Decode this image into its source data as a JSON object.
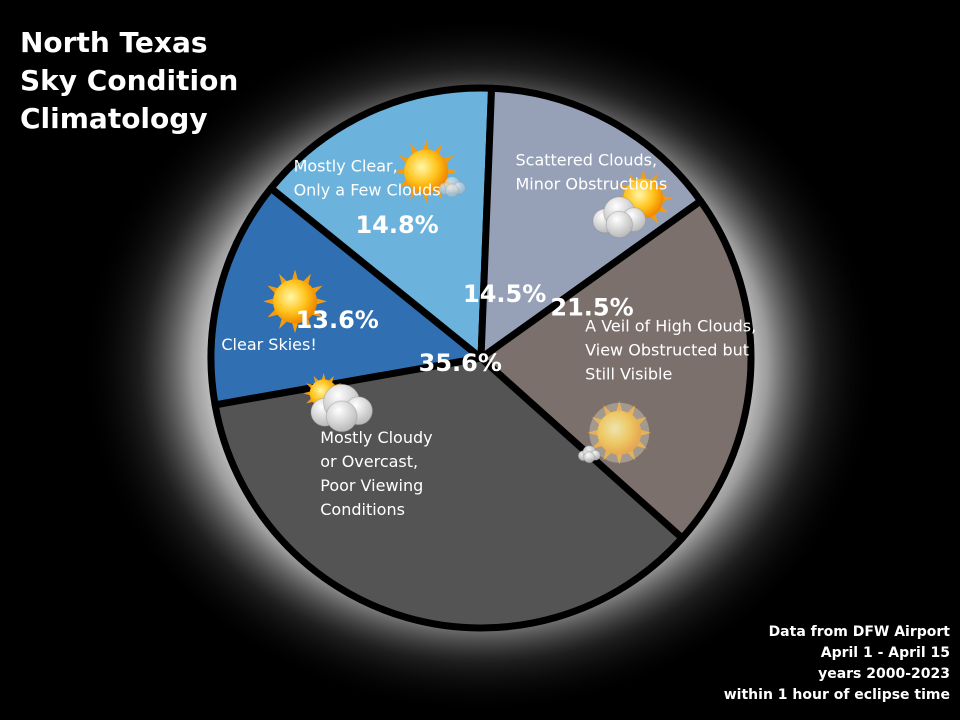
{
  "title_lines": [
    "North Texas",
    "Sky Condition",
    "Climatology"
  ],
  "footnote_lines": [
    "Data from DFW Airport",
    "April 1 - April 15",
    "years 2000-2023",
    "within 1 hour of eclipse time"
  ],
  "colors": {
    "background": "#000000",
    "corona": "#d8d8d8",
    "outline": "#000000",
    "text": "#ffffff"
  },
  "chart_data": {
    "type": "pie",
    "title": "North Texas Sky Condition Climatology",
    "slices": [
      {
        "label_lines": [
          "Clear Skies!"
        ],
        "value": 13.6,
        "value_label": "13.6%",
        "color": "#2f6fb2",
        "icon": "sun-icon"
      },
      {
        "label_lines": [
          "Mostly Clear,",
          "Only a Few Clouds"
        ],
        "value": 14.8,
        "value_label": "14.8%",
        "color": "#6bb3dd",
        "icon": "sun-small-cloud-icon"
      },
      {
        "label_lines": [
          "Scattered Clouds,",
          "Minor Obstructions"
        ],
        "value": 14.5,
        "value_label": "14.5%",
        "color": "#96a1b8",
        "icon": "partly-cloudy-icon"
      },
      {
        "label_lines": [
          "A Veil of High Clouds,",
          "View Obstructed but",
          "Still Visible"
        ],
        "value": 21.5,
        "value_label": "21.5%",
        "color": "#7b706b",
        "icon": "hazy-sun-icon"
      },
      {
        "label_lines": [
          "Mostly Cloudy",
          "or Overcast,",
          "Poor Viewing",
          "Conditions"
        ],
        "value": 35.6,
        "value_label": "35.6%",
        "color": "#545454",
        "icon": "cloudy-icon"
      }
    ]
  }
}
